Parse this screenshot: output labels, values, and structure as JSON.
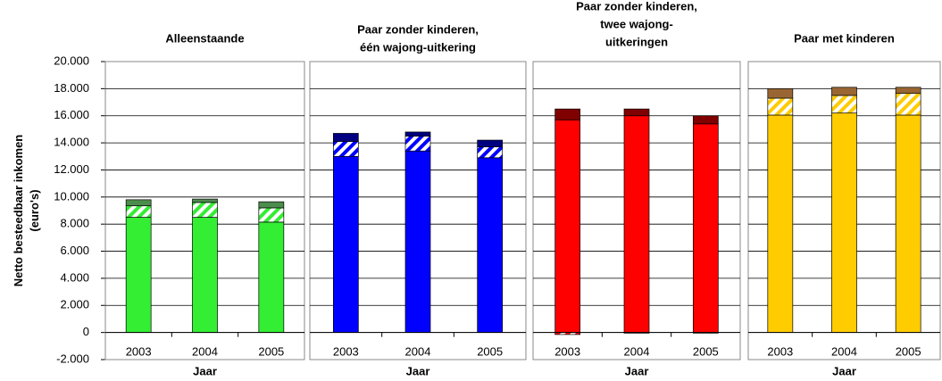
{
  "chart_data": [
    {
      "type": "bar",
      "stacked": true,
      "title": [
        "Alleenstaande"
      ],
      "ylabel": [
        "Netto besteedbaar inkomen",
        "(euro's)"
      ],
      "xlabel": "Jaar",
      "categories": [
        "2003",
        "2004",
        "2005"
      ],
      "series": [
        {
          "color": "#33ee33",
          "values": [
            8500,
            8500,
            8150
          ]
        },
        {
          "color": "#33ee33",
          "hatch": true,
          "values": [
            850,
            1100,
            1050
          ]
        },
        {
          "color": "#4c8c4c",
          "values": [
            450,
            250,
            450
          ]
        }
      ],
      "ylim": [
        -2000,
        20000
      ],
      "yticks": [
        {
          "value": -2000,
          "label": "-2.000"
        },
        0,
        {
          "value": 2000,
          "label": "2.000"
        },
        {
          "value": 4000,
          "label": "4.000"
        },
        {
          "value": 6000,
          "label": "6.000"
        },
        {
          "value": 8000,
          "label": "8.000"
        },
        {
          "value": 10000,
          "label": "10.000"
        },
        {
          "value": 12000,
          "label": "12.000"
        },
        {
          "value": 14000,
          "label": "14.000"
        },
        {
          "value": 16000,
          "label": "16.000"
        },
        {
          "value": 18000,
          "label": "18.000"
        },
        {
          "value": 20000,
          "label": "20.000"
        }
      ],
      "grid": true
    },
    {
      "type": "bar",
      "stacked": true,
      "title": [
        "Paar zonder kinderen,",
        "één wajong-uitkering"
      ],
      "xlabel": "Jaar",
      "categories": [
        "2003",
        "2004",
        "2005"
      ],
      "series": [
        {
          "color": "#0000ff",
          "values": [
            13000,
            13400,
            12900
          ]
        },
        {
          "color": "#0000ff",
          "hatch": true,
          "values": [
            1100,
            1100,
            800
          ]
        },
        {
          "color": "#000080",
          "values": [
            600,
            300,
            500
          ]
        }
      ],
      "grid": true
    },
    {
      "type": "bar",
      "stacked": true,
      "title": [
        "Paar zonder kinderen,",
        "twee wajong-",
        "uitkeringen"
      ],
      "xlabel": "Jaar",
      "categories": [
        "2003",
        "2004",
        "2005"
      ],
      "series": [
        {
          "color": "#ff0000",
          "values": [
            15700,
            16000,
            15400
          ]
        },
        {
          "color": "#ff0000",
          "hatch": true,
          "values": [
            -150,
            -50,
            -50
          ]
        },
        {
          "color": "#800000",
          "values": [
            800,
            500,
            600
          ]
        }
      ],
      "grid": true
    },
    {
      "type": "bar",
      "stacked": true,
      "title": [
        "Paar met kinderen"
      ],
      "xlabel": "Jaar",
      "categories": [
        "2003",
        "2004",
        "2005"
      ],
      "series": [
        {
          "color": "#ffcc00",
          "values": [
            16050,
            16200,
            16050
          ]
        },
        {
          "color": "#ffcc00",
          "hatch": true,
          "values": [
            1250,
            1300,
            1600
          ]
        },
        {
          "color": "#996633",
          "values": [
            700,
            600,
            450
          ]
        }
      ],
      "grid": true
    }
  ]
}
